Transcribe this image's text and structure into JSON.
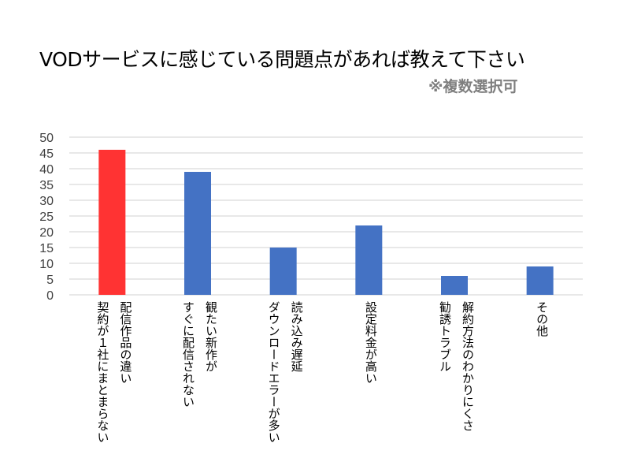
{
  "chart_data": {
    "type": "bar",
    "title": "VODサービスに感じている問題点があれば教えて下さい",
    "subtitle": "※複数選択可",
    "categories": [
      "配信作品の違い\n契約が１社にまとまらない",
      "観たい新作が\nすぐに配信されない",
      "読み込み遅延\nダウンロードエラーが多い",
      "設定料金が高い",
      "解約方法のわかりにくさ\n勧誘トラブル",
      "その他"
    ],
    "values": [
      46,
      39,
      15,
      22,
      6,
      9
    ],
    "bar_colors": [
      "#ff3333",
      "#4472c4",
      "#4472c4",
      "#4472c4",
      "#4472c4",
      "#4472c4"
    ],
    "xlabel": "",
    "ylabel": "",
    "ylim": [
      0,
      50
    ],
    "yticks": [
      0,
      5,
      10,
      15,
      20,
      25,
      30,
      35,
      40,
      45,
      50
    ],
    "grid": true,
    "legend": "none"
  }
}
